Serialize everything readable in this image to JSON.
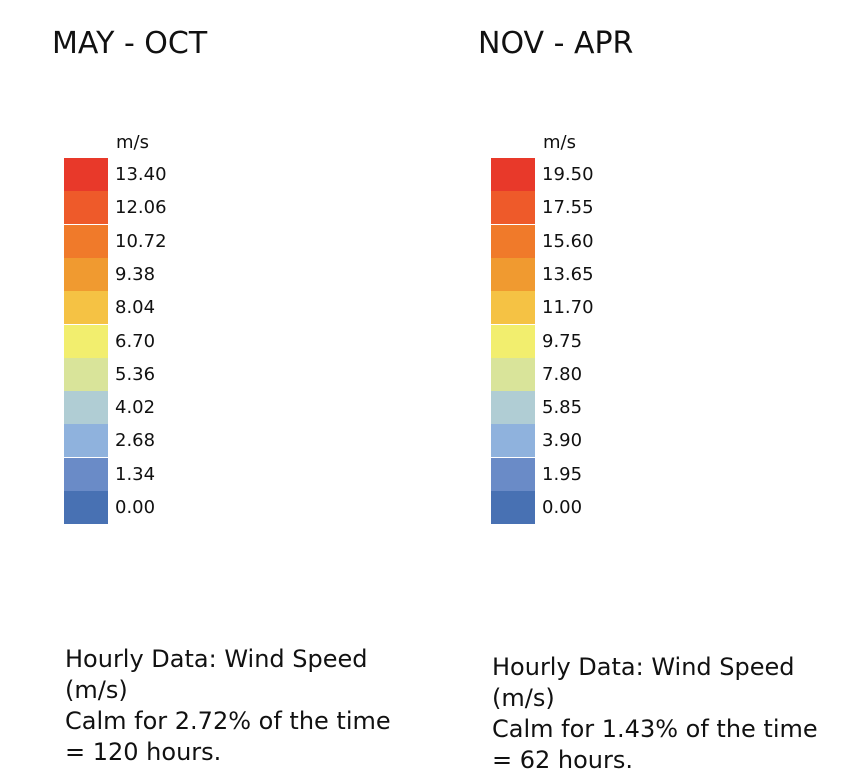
{
  "panels": [
    {
      "title": "MAY - OCT",
      "unit": "m/s",
      "legend": [
        {
          "label": "13.40",
          "color": "#e8392a"
        },
        {
          "label": "12.06",
          "color": "#ee5a2a"
        },
        {
          "label": "10.72",
          "color": "#f07a2a"
        },
        {
          "label": "9.38",
          "color": "#f09a30"
        },
        {
          "label": "8.04",
          "color": "#f5c244"
        },
        {
          "label": "6.70",
          "color": "#f2ee6e"
        },
        {
          "label": "5.36",
          "color": "#d9e49a"
        },
        {
          "label": "4.02",
          "color": "#b0cdd4"
        },
        {
          "label": "2.68",
          "color": "#8fb2dd"
        },
        {
          "label": "1.34",
          "color": "#6a8bc7"
        },
        {
          "label": "0.00",
          "color": "#4871b3"
        }
      ],
      "caption": [
        "Hourly Data: Wind Speed",
        "(m/s)",
        "Calm for 2.72% of the time",
        "= 120 hours."
      ]
    },
    {
      "title": "NOV - APR",
      "unit": "m/s",
      "legend": [
        {
          "label": "19.50",
          "color": "#e8392a"
        },
        {
          "label": "17.55",
          "color": "#ee5a2a"
        },
        {
          "label": "15.60",
          "color": "#f07a2a"
        },
        {
          "label": "13.65",
          "color": "#f09a30"
        },
        {
          "label": "11.70",
          "color": "#f5c244"
        },
        {
          "label": "9.75",
          "color": "#f2ee6e"
        },
        {
          "label": "7.80",
          "color": "#d9e49a"
        },
        {
          "label": "5.85",
          "color": "#b0cdd4"
        },
        {
          "label": "3.90",
          "color": "#8fb2dd"
        },
        {
          "label": "1.95",
          "color": "#6a8bc7"
        },
        {
          "label": "0.00",
          "color": "#4871b3"
        }
      ],
      "caption": [
        "Hourly Data: Wind Speed",
        "(m/s)",
        "Calm for 1.43% of the time",
        "= 62 hours."
      ]
    }
  ]
}
